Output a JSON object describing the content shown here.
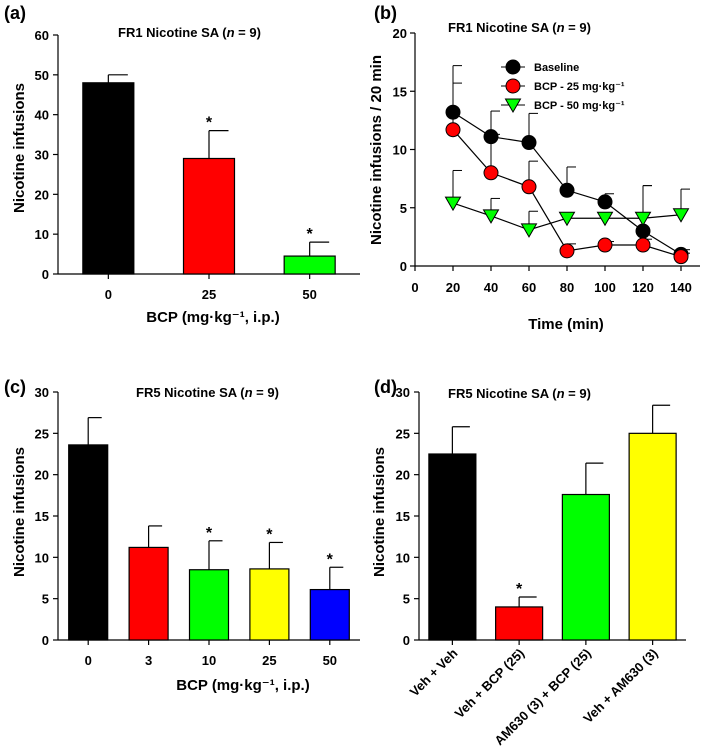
{
  "chart_data": [
    {
      "id": "a",
      "panel": "(a)",
      "type": "bar",
      "title": "FR1 Nicotine SA (",
      "title_n": "n",
      "title_tail": " = 9)",
      "xlabel": "BCP (mg·kg⁻¹, i.p.)",
      "ylabel": "Nicotine infusions",
      "ylim": [
        0,
        60
      ],
      "yticks": [
        0,
        10,
        20,
        30,
        40,
        50,
        60
      ],
      "categories": [
        "0",
        "25",
        "50"
      ],
      "values": [
        48,
        29,
        4.5
      ],
      "errors": [
        2,
        7,
        3.5
      ],
      "colors": [
        "#000000",
        "#ff0000",
        "#00ff00"
      ],
      "significant": [
        false,
        true,
        true
      ],
      "sig_marker": "*"
    },
    {
      "id": "b",
      "panel": "(b)",
      "type": "line",
      "title": "FR1 Nicotine SA (",
      "title_n": "n",
      "title_tail": " = 9)",
      "xlabel": "Time (min)",
      "ylabel": "Nicotine infusions / 20 min",
      "xlim": [
        0,
        150
      ],
      "xticks": [
        0,
        20,
        40,
        60,
        80,
        100,
        120,
        140
      ],
      "ylim": [
        0,
        20
      ],
      "yticks": [
        0,
        5,
        10,
        15,
        20
      ],
      "x": [
        20,
        40,
        60,
        80,
        100,
        120,
        140
      ],
      "series": [
        {
          "name": "Baseline",
          "marker": "circle",
          "color": "#000000",
          "values": [
            13.2,
            11.1,
            10.6,
            6.5,
            5.5,
            3.0,
            1.0
          ],
          "errors": [
            4.0,
            2.2,
            2.5,
            2.0,
            0.7,
            3.9,
            0.4
          ]
        },
        {
          "name": "BCP - 25 mg·kg⁻¹",
          "marker": "circle",
          "color": "#ff0000",
          "values": [
            11.7,
            8.0,
            6.8,
            1.3,
            1.8,
            1.8,
            0.8
          ],
          "errors": [
            4.0,
            3.3,
            2.2,
            0.6,
            0.3,
            0.5,
            0.3
          ]
        },
        {
          "name": "BCP - 50 mg·kg⁻¹",
          "marker": "triangle-down",
          "color": "#00ff00",
          "values": [
            5.4,
            4.3,
            3.1,
            4.1,
            4.1,
            4.1,
            4.4
          ],
          "errors": [
            2.8,
            1.5,
            1.6,
            0,
            0,
            2.8,
            2.2
          ]
        }
      ],
      "legend_position": "top-right"
    },
    {
      "id": "c",
      "panel": "(c)",
      "type": "bar",
      "title": "FR5 Nicotine SA (",
      "title_n": "n",
      "title_tail": " = 9)",
      "xlabel": "BCP (mg·kg⁻¹, i.p.)",
      "ylabel": "Nicotine infusions",
      "ylim": [
        0,
        30
      ],
      "yticks": [
        0,
        5,
        10,
        15,
        20,
        25,
        30
      ],
      "categories": [
        "0",
        "3",
        "10",
        "25",
        "50"
      ],
      "values": [
        23.6,
        11.2,
        8.5,
        8.6,
        6.1
      ],
      "errors": [
        3.3,
        2.6,
        3.5,
        3.2,
        2.7
      ],
      "colors": [
        "#000000",
        "#ff0000",
        "#00ff00",
        "#ffff00",
        "#0000ff"
      ],
      "significant": [
        false,
        false,
        true,
        true,
        true
      ],
      "sig_marker": "*"
    },
    {
      "id": "d",
      "panel": "(d)",
      "type": "bar",
      "title": "FR5 Nicotine SA (",
      "title_n": "n",
      "title_tail": " = 9)",
      "xlabel": "",
      "ylabel": "Nicotine infusions",
      "ylim": [
        0,
        30
      ],
      "yticks": [
        0,
        5,
        10,
        15,
        20,
        25,
        30
      ],
      "categories": [
        "Veh + Veh",
        "Veh + BCP (25)",
        "AM630 (3) + BCP (25)",
        "Veh + AM630 (3)"
      ],
      "values": [
        22.5,
        4.0,
        17.6,
        25.0
      ],
      "errors": [
        3.3,
        1.2,
        3.8,
        3.4
      ],
      "colors": [
        "#000000",
        "#ff0000",
        "#00ff00",
        "#ffff00"
      ],
      "significant": [
        false,
        true,
        false,
        false
      ],
      "sig_marker": "*"
    }
  ]
}
